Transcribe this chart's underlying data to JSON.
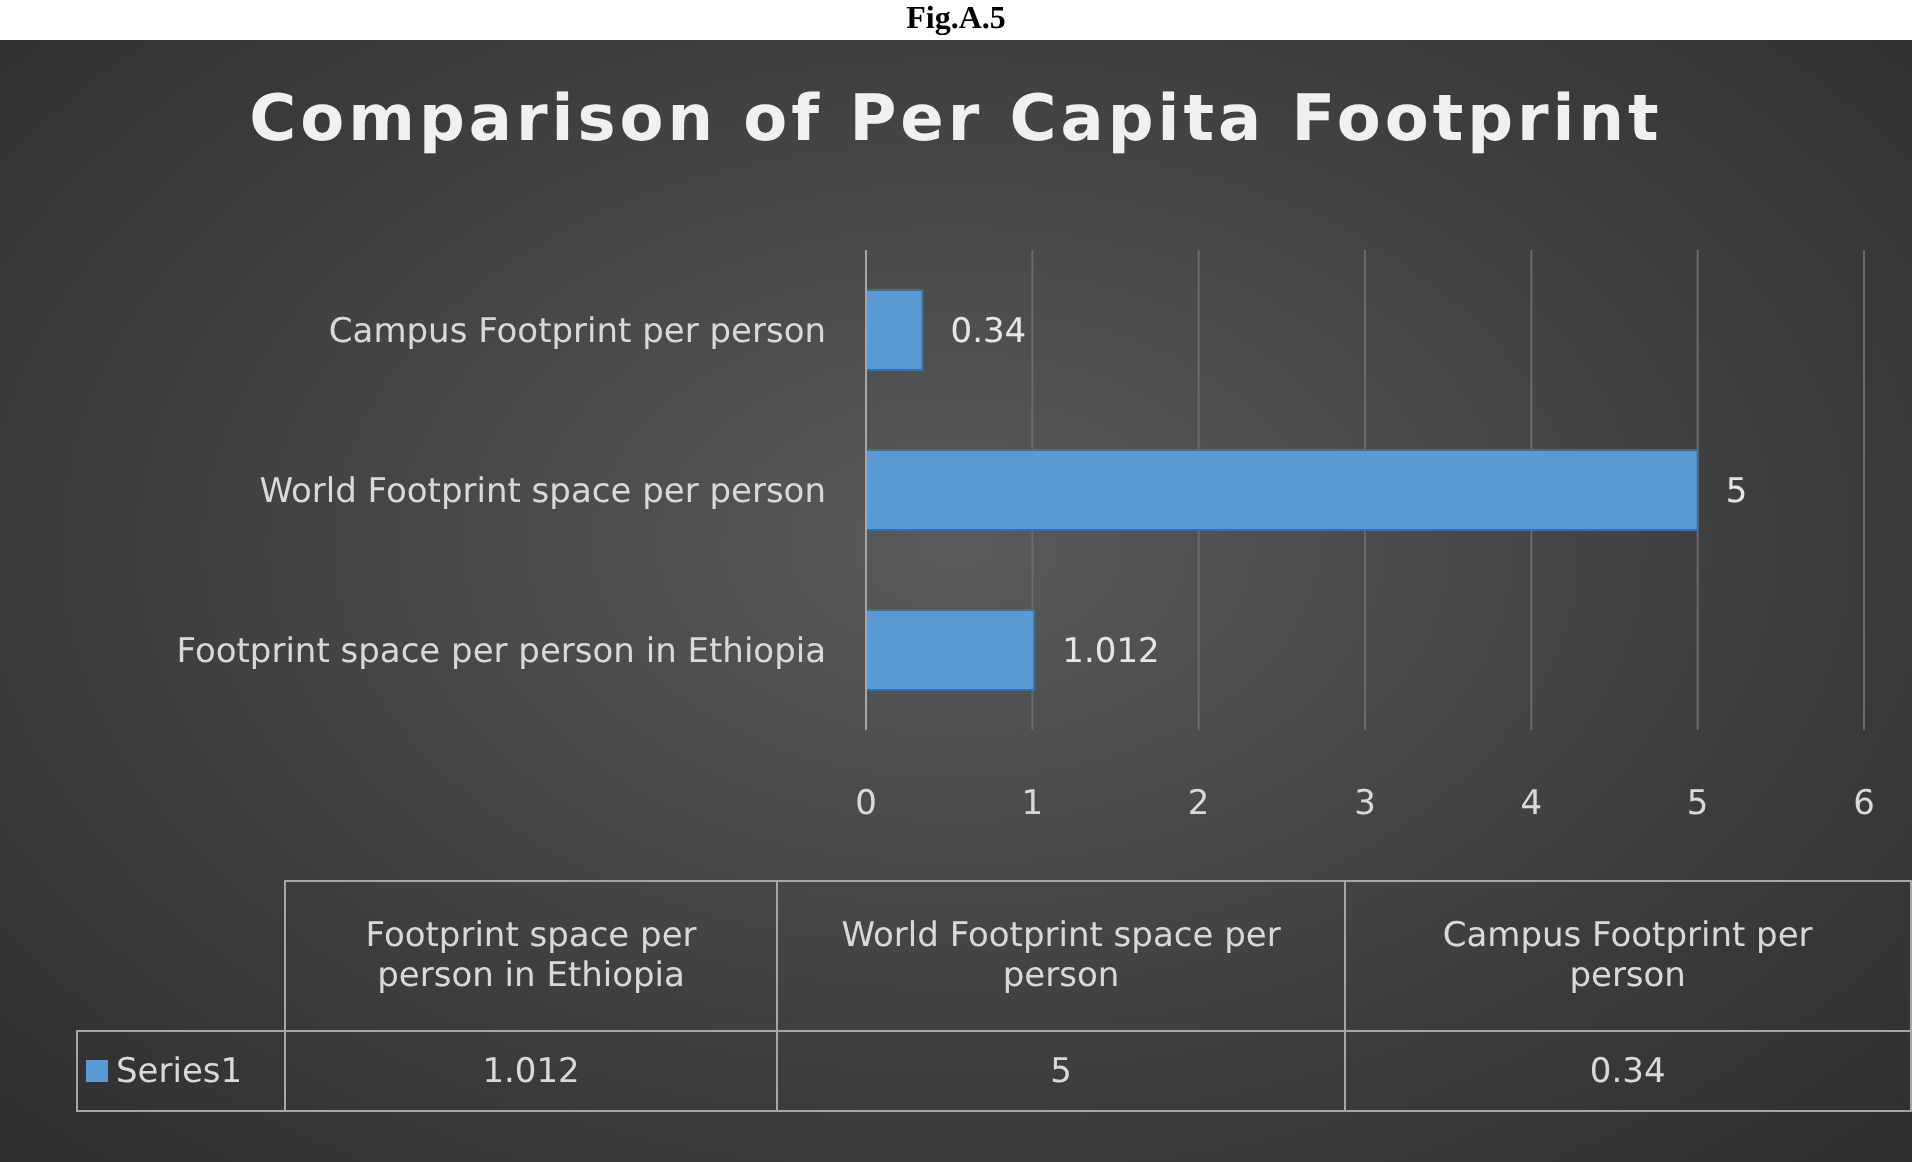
{
  "chart_data": {
    "type": "bar",
    "orientation": "horizontal",
    "title": "Comparison of Per Capita Footprint",
    "annotations": [
      "Fig.A.5"
    ],
    "categories": [
      "Campus Footprint per person",
      "World Footprint space per person",
      "Footprint space per person in Ethiopia"
    ],
    "series": [
      {
        "name": "Series1",
        "color": "#5b9bd5",
        "values": [
          0.34,
          5,
          1.012
        ],
        "value_labels": [
          "0.34",
          "5",
          "1.012"
        ]
      }
    ],
    "xlim": [
      0,
      6
    ],
    "xticks": [
      0,
      1,
      2,
      3,
      4,
      5,
      6
    ],
    "grid": "x"
  }
}
